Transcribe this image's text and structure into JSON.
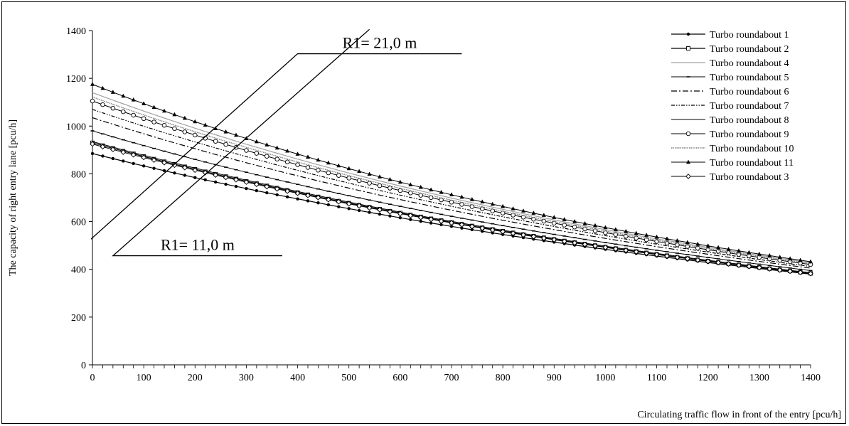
{
  "chart_data": {
    "type": "line",
    "title": "",
    "xlabel": "Circulating traffic flow in front of the entry [pcu/h]",
    "ylabel": "The capacity of right entry lane [pcu/h]",
    "xlim": [
      0,
      1400
    ],
    "ylim": [
      0,
      1400
    ],
    "xticks": [
      0,
      100,
      200,
      300,
      400,
      500,
      600,
      700,
      800,
      900,
      1000,
      1100,
      1200,
      1300,
      1400
    ],
    "yticks": [
      0,
      200,
      400,
      600,
      800,
      1000,
      1200,
      1400
    ],
    "x_step": 20,
    "grid": false,
    "legend_position": "top-right",
    "series": [
      {
        "name": "Turbo roundabout 1",
        "start": 885,
        "end": 380,
        "dash": "",
        "color": "#000000",
        "marker": "dot",
        "width": 1.2
      },
      {
        "name": "Turbo roundabout 2",
        "start": 930,
        "end": 383,
        "dash": "",
        "color": "#000000",
        "marker": "square",
        "width": 1.2
      },
      {
        "name": "Turbo roundabout 4",
        "start": 1140,
        "end": 428,
        "dash": "",
        "color": "#a0a0a0",
        "marker": "none",
        "width": 1.2
      },
      {
        "name": "Turbo roundabout 5",
        "start": 980,
        "end": 395,
        "dash": "",
        "color": "#000000",
        "marker": "dash",
        "width": 1.0
      },
      {
        "name": "Turbo roundabout 6",
        "start": 1035,
        "end": 405,
        "dash": "8,3,2,3",
        "color": "#000000",
        "marker": "none",
        "width": 1.2
      },
      {
        "name": "Turbo roundabout 7",
        "start": 1070,
        "end": 412,
        "dash": "5,2,1.5,2,1.5,2",
        "color": "#000000",
        "marker": "none",
        "width": 1.2
      },
      {
        "name": "Turbo roundabout 8",
        "start": 935,
        "end": 386,
        "dash": "",
        "color": "#000000",
        "marker": "none",
        "width": 1.0
      },
      {
        "name": "Turbo roundabout 9",
        "start": 1105,
        "end": 420,
        "dash": "",
        "color": "#000000",
        "marker": "circle",
        "width": 1.0
      },
      {
        "name": "Turbo roundabout 10",
        "start": 1122,
        "end": 424,
        "dash": "1.5,1",
        "color": "#808080",
        "marker": "none",
        "width": 1.4
      },
      {
        "name": "Turbo roundabout 11",
        "start": 1175,
        "end": 432,
        "dash": "",
        "color": "#000000",
        "marker": "triangle",
        "width": 1.0
      },
      {
        "name": "Turbo roundabout 3",
        "start": 925,
        "end": 382,
        "dash": "",
        "color": "#000000",
        "marker": "diamond",
        "width": 1.0
      }
    ],
    "annotations": [
      {
        "text": "R1= 21,0 m",
        "target": [
          -40,
          455
        ],
        "bend": [
          400,
          1303
        ],
        "end": [
          720,
          1303
        ]
      },
      {
        "text": "R1= 11,0 m",
        "target": [
          540,
          1405
        ],
        "bend": [
          40,
          457
        ],
        "end": [
          370,
          457
        ]
      }
    ]
  }
}
